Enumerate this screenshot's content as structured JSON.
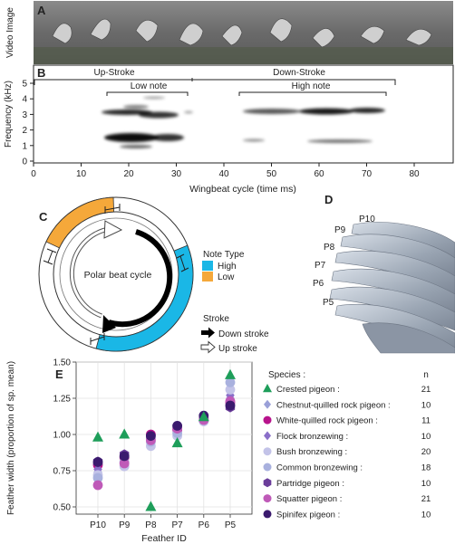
{
  "panels": {
    "a": {
      "letter": "A",
      "ylabel": "Video Image"
    },
    "b": {
      "letter": "B",
      "ylabel": "Frequency (kHz)",
      "xlabel": "Wingbeat cycle (time ms)",
      "up_stroke": "Up-Stroke",
      "down_stroke": "Down-Stroke",
      "low_note": "Low note",
      "high_note": "High note",
      "yticks": [
        "0",
        "1",
        "2",
        "3",
        "4",
        "5"
      ],
      "xticks": [
        "0",
        "10",
        "20",
        "30",
        "40",
        "50",
        "60",
        "70",
        "80"
      ]
    },
    "c": {
      "letter": "C",
      "center_label": "Polar beat cycle",
      "note_type_title": "Note Type",
      "note_high": "High",
      "note_low": "Low",
      "stroke_title": "Stroke",
      "down_stroke": "Down stroke",
      "up_stroke": "Up stroke",
      "colors": {
        "high": "#1ab7e6",
        "low": "#f5a83a"
      }
    },
    "d": {
      "letter": "D",
      "feathers": [
        "P10",
        "P9",
        "P8",
        "P7",
        "P6",
        "P5"
      ]
    },
    "e": {
      "letter": "E",
      "species_title": "Species :",
      "n_title": "n"
    }
  },
  "chart_data": {
    "type": "scatter",
    "title": "",
    "xlabel": "Feather ID",
    "ylabel": "Feather width (proportion of sp. mean)",
    "categories": [
      "P10",
      "P9",
      "P8",
      "P7",
      "P6",
      "P5"
    ],
    "ylim": [
      0.45,
      1.5
    ],
    "yticks": [
      "0.50",
      "0.75",
      "1.00",
      "1.25",
      "1.50"
    ],
    "grid": true,
    "legend_placement": "right",
    "series": [
      {
        "name": "Crested pigeon :",
        "n": "21",
        "color": "#1e9e5a",
        "marker": "triangle",
        "values": [
          0.98,
          1.0,
          0.5,
          0.94,
          1.12,
          1.41
        ]
      },
      {
        "name": "Chestnut-quilled rock pigeon :",
        "n": "10",
        "color": "#9aa0d8",
        "marker": "diamond",
        "values": [
          0.74,
          0.86,
          0.97,
          1.03,
          1.11,
          1.25
        ]
      },
      {
        "name": "White-quilled rock pigeon :",
        "n": "11",
        "color": "#b8138c",
        "marker": "circle",
        "values": [
          0.79,
          0.84,
          1.0,
          1.03,
          1.11,
          1.22
        ]
      },
      {
        "name": "Flock bronzewing :",
        "n": "10",
        "color": "#8a6fc9",
        "marker": "diamond",
        "values": [
          0.76,
          0.82,
          0.93,
          1.02,
          1.1,
          1.27
        ]
      },
      {
        "name": "Bush bronzewing :",
        "n": "20",
        "color": "#c3c3e8",
        "marker": "circle",
        "values": [
          0.72,
          0.78,
          0.92,
          0.99,
          1.09,
          1.31
        ]
      },
      {
        "name": "Common bronzewing :",
        "n": "18",
        "color": "#a9b1de",
        "marker": "circle",
        "values": [
          0.7,
          0.81,
          0.95,
          1.01,
          1.1,
          1.36
        ]
      },
      {
        "name": "Partridge pigeon :",
        "n": "10",
        "color": "#6b3d9a",
        "marker": "hexagon",
        "values": [
          0.81,
          0.86,
          0.98,
          1.05,
          1.12,
          1.19
        ]
      },
      {
        "name": "Squatter pigeon :",
        "n": "21",
        "color": "#bf5ab8",
        "marker": "circle",
        "values": [
          0.65,
          0.8,
          0.96,
          1.04,
          1.1,
          1.23
        ]
      },
      {
        "name": "Spinifex pigeon :",
        "n": "10",
        "color": "#3b1a6e",
        "marker": "circle",
        "values": [
          0.81,
          0.85,
          0.99,
          1.06,
          1.13,
          1.2
        ]
      }
    ]
  }
}
